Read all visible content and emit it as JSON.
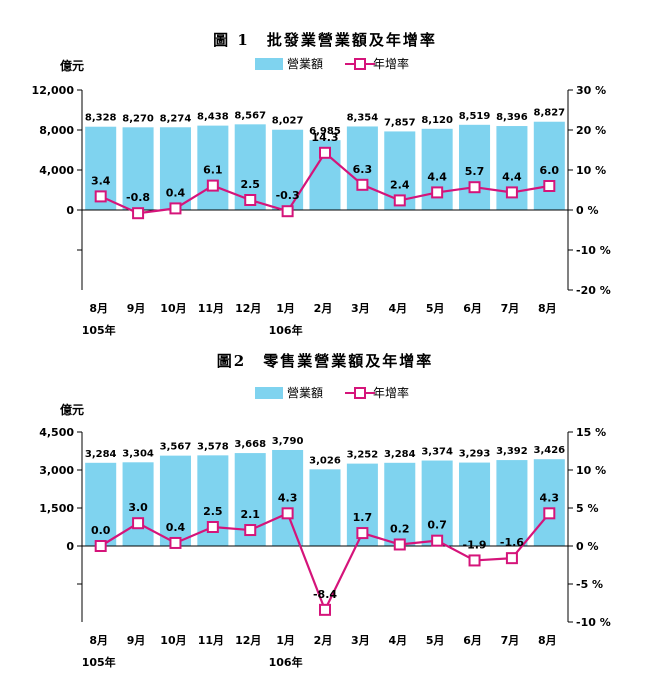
{
  "colors": {
    "bar": "#7fd3ef",
    "line": "#d5147a",
    "axis": "#000000",
    "background": "#ffffff"
  },
  "chart_data": [
    {
      "type": "bar+line",
      "title": "圖 1　批發業營業額及年增率",
      "left_unit": "億元",
      "legend": {
        "bar": "營業額",
        "line": "年增率"
      },
      "categories": [
        "8月",
        "9月",
        "10月",
        "11月",
        "12月",
        "1月",
        "2月",
        "3月",
        "4月",
        "5月",
        "6月",
        "7月",
        "8月"
      ],
      "year_labels": [
        {
          "index": 0,
          "text": "105年"
        },
        {
          "index": 5,
          "text": "106年"
        }
      ],
      "series": [
        {
          "name": "營業額",
          "type": "bar",
          "axis": "left",
          "values": [
            8328,
            8270,
            8274,
            8438,
            8567,
            8027,
            6985,
            8354,
            7857,
            8120,
            8519,
            8396,
            8827
          ],
          "labels": [
            "8,328",
            "8,270",
            "8,274",
            "8,438",
            "8,567",
            "8,027",
            "6,985",
            "8,354",
            "7,857",
            "8,120",
            "8,519",
            "8,396",
            "8,827"
          ]
        },
        {
          "name": "年增率",
          "type": "line",
          "axis": "right",
          "values": [
            3.4,
            -0.8,
            0.4,
            6.1,
            2.5,
            -0.3,
            14.3,
            6.3,
            2.4,
            4.4,
            5.7,
            4.4,
            6.0
          ],
          "labels": [
            "3.4",
            "-0.8",
            "0.4",
            "6.1",
            "2.5",
            "-0.3",
            "14.3",
            "6.3",
            "2.4",
            "4.4",
            "5.7",
            "4.4",
            "6.0"
          ]
        }
      ],
      "left_axis": {
        "ylim": [
          -8000,
          12000
        ],
        "ticks": [
          0,
          4000,
          8000,
          12000
        ],
        "tick_labels": [
          "0",
          "4,000",
          "8,000",
          "12,000"
        ]
      },
      "right_axis": {
        "ylim": [
          -20,
          30
        ],
        "ticks": [
          -20,
          -10,
          0,
          10,
          20,
          30
        ],
        "tick_labels": [
          "-20 %",
          "-10 %",
          "0 %",
          "10 %",
          "20 %",
          "30 %"
        ]
      }
    },
    {
      "type": "bar+line",
      "title": "圖2　零售業營業額及年增率",
      "left_unit": "億元",
      "legend": {
        "bar": "營業額",
        "line": "年增率"
      },
      "categories": [
        "8月",
        "9月",
        "10月",
        "11月",
        "12月",
        "1月",
        "2月",
        "3月",
        "4月",
        "5月",
        "6月",
        "7月",
        "8月"
      ],
      "year_labels": [
        {
          "index": 0,
          "text": "105年"
        },
        {
          "index": 5,
          "text": "106年"
        }
      ],
      "series": [
        {
          "name": "營業額",
          "type": "bar",
          "axis": "left",
          "values": [
            3284,
            3304,
            3567,
            3578,
            3668,
            3790,
            3026,
            3252,
            3284,
            3374,
            3293,
            3392,
            3426
          ],
          "labels": [
            "3,284",
            "3,304",
            "3,567",
            "3,578",
            "3,668",
            "3,790",
            "3,026",
            "3,252",
            "3,284",
            "3,374",
            "3,293",
            "3,392",
            "3,426"
          ]
        },
        {
          "name": "年增率",
          "type": "line",
          "axis": "right",
          "values": [
            0.0,
            3.0,
            0.4,
            2.5,
            2.1,
            4.3,
            -8.4,
            1.7,
            0.2,
            0.7,
            -1.9,
            -1.6,
            4.3
          ],
          "labels": [
            "0.0",
            "3.0",
            "0.4",
            "2.5",
            "2.1",
            "4.3",
            "-8.4",
            "1.7",
            "0.2",
            "0.7",
            "-1.9",
            "-1.6",
            "4.3"
          ]
        }
      ],
      "left_axis": {
        "ylim": [
          -3000,
          4500
        ],
        "ticks": [
          0,
          1500,
          3000,
          4500
        ],
        "tick_labels": [
          "0",
          "1,500",
          "3,000",
          "4,500"
        ]
      },
      "right_axis": {
        "ylim": [
          -10,
          15
        ],
        "ticks": [
          -10,
          -5,
          0,
          5,
          10,
          15
        ],
        "tick_labels": [
          "-10 %",
          "-5 %",
          "0 %",
          "5 %",
          "10 %",
          "15 %"
        ]
      }
    }
  ]
}
